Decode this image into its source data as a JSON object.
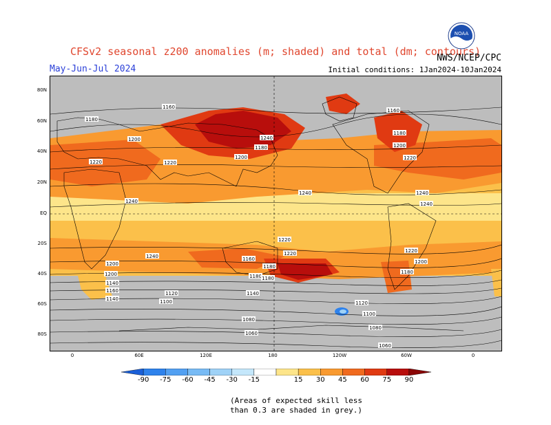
{
  "header": {
    "title": "CFSv2 seasonal z200 anomalies (m; shaded) and total (dm; contours)",
    "period": "May-Jun-Jul 2024",
    "initial_conditions": "Initial conditions: 1Jan2024-10Jan2024",
    "agency": "NWS/NCEP/CPC",
    "logo_text": "NOAA"
  },
  "map": {
    "lat_labels": [
      "80N",
      "60N",
      "40N",
      "20N",
      "EQ",
      "20S",
      "40S",
      "60S",
      "80S"
    ],
    "lon_labels": [
      "0",
      "60E",
      "120E",
      "180",
      "120W",
      "60W",
      "0"
    ],
    "contour_labels": [
      "1160",
      "1180",
      "1200",
      "1220",
      "1240",
      "1180",
      "1200",
      "1220",
      "1160",
      "1180",
      "1200",
      "1220",
      "1240",
      "1240",
      "1240",
      "1240",
      "1220",
      "1240",
      "1220",
      "1200",
      "1180",
      "1160",
      "1140",
      "1200",
      "1180",
      "1220",
      "1200",
      "1180",
      "1160",
      "1140",
      "1120",
      "1100",
      "1140",
      "1120",
      "1100",
      "1080",
      "1060",
      "1080",
      "1060",
      "1180"
    ]
  },
  "colorbar": {
    "labels": [
      "-90",
      "-75",
      "-60",
      "-45",
      "-30",
      "-15",
      "15",
      "30",
      "45",
      "60",
      "75",
      "90"
    ],
    "colors": [
      "#1a5fd8",
      "#2e82ec",
      "#52a0f2",
      "#78bbf5",
      "#9fd2f7",
      "#c4e7fb",
      "#ffffff",
      "#fde58a",
      "#fbc04a",
      "#f99a30",
      "#f06a1e",
      "#e03a12",
      "#b80e0c",
      "#8a0606"
    ]
  },
  "note": {
    "line1": "(Areas of expected skill less",
    "line2": "than 0.3 are shaded in grey.)"
  }
}
